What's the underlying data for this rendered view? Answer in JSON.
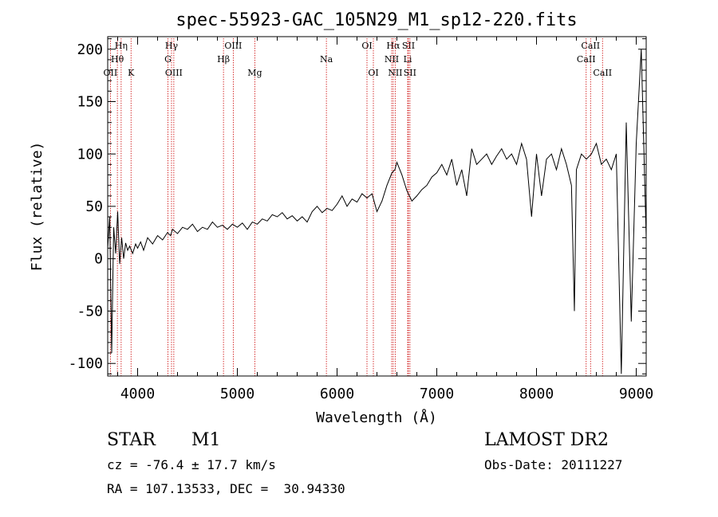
{
  "chart_data": {
    "type": "line",
    "title": "spec-55923-GAC_105N29_M1_sp12-220.fits",
    "xlabel": "Wavelength (Å)",
    "ylabel": "Flux (relative)",
    "xlim": [
      3700,
      9100
    ],
    "ylim": [
      -112,
      212
    ],
    "x_ticks": [
      4000,
      5000,
      6000,
      7000,
      8000,
      9000
    ],
    "y_ticks": [
      -100,
      -50,
      0,
      50,
      100,
      150,
      200
    ],
    "grid": false,
    "line_color": "#000000",
    "marker_color": "#cc0000",
    "series": [
      {
        "x": [
          3700,
          3720,
          3740,
          3760,
          3780,
          3800,
          3820,
          3840,
          3860,
          3880,
          3900,
          3920,
          3950,
          3980,
          4000,
          4030,
          4060,
          4100,
          4150,
          4200,
          4250,
          4300,
          4330,
          4350,
          4400,
          4450,
          4500,
          4550,
          4600,
          4650,
          4700,
          4750,
          4800,
          4850,
          4900,
          4950,
          5000,
          5050,
          5100,
          5150,
          5200,
          5250,
          5300,
          5350,
          5400,
          5450,
          5500,
          5550,
          5600,
          5650,
          5700,
          5750,
          5800,
          5850,
          5900,
          5950,
          6000,
          6050,
          6100,
          6150,
          6200,
          6250,
          6300,
          6350,
          6400,
          6450,
          6500,
          6550,
          6580,
          6600,
          6650,
          6700,
          6750,
          6800,
          6850,
          6900,
          6950,
          7000,
          7050,
          7100,
          7150,
          7200,
          7250,
          7300,
          7350,
          7400,
          7450,
          7500,
          7550,
          7600,
          7650,
          7700,
          7750,
          7800,
          7850,
          7900,
          7950,
          8000,
          8050,
          8100,
          8150,
          8200,
          8250,
          8300,
          8350,
          8380,
          8400,
          8450,
          8500,
          8550,
          8600,
          8650,
          8700,
          8750,
          8800,
          8850,
          8900,
          8950,
          9000,
          9050,
          9100
        ],
        "y": [
          10,
          40,
          -90,
          30,
          5,
          45,
          -5,
          20,
          0,
          15,
          8,
          12,
          5,
          14,
          10,
          16,
          8,
          20,
          14,
          22,
          18,
          25,
          22,
          28,
          24,
          30,
          28,
          33,
          26,
          30,
          28,
          35,
          30,
          32,
          28,
          33,
          30,
          34,
          28,
          35,
          33,
          38,
          36,
          42,
          40,
          44,
          38,
          41,
          36,
          40,
          35,
          45,
          50,
          44,
          48,
          46,
          52,
          60,
          50,
          57,
          54,
          62,
          58,
          62,
          45,
          55,
          70,
          82,
          85,
          92,
          80,
          65,
          55,
          60,
          66,
          70,
          78,
          82,
          90,
          80,
          95,
          70,
          85,
          60,
          105,
          90,
          95,
          100,
          90,
          98,
          105,
          95,
          100,
          90,
          110,
          95,
          40,
          100,
          60,
          95,
          100,
          85,
          105,
          90,
          70,
          -50,
          85,
          100,
          95,
          100,
          110,
          90,
          95,
          85,
          100,
          -110,
          130,
          -60,
          110,
          200,
          20
        ]
      }
    ],
    "line_markers": [
      {
        "label": "Hη",
        "x": 3835,
        "row": 1
      },
      {
        "label": "Hθ",
        "x": 3797,
        "row": 2
      },
      {
        "label": "OII",
        "x": 3727,
        "row": 3
      },
      {
        "label": "K",
        "x": 3934,
        "row": 3
      },
      {
        "label": "Hγ",
        "x": 4340,
        "row": 1
      },
      {
        "label": "G",
        "x": 4304,
        "row": 2
      },
      {
        "label": "OIII",
        "x": 4363,
        "row": 3
      },
      {
        "label": "OIII",
        "x": 4959,
        "row": 1
      },
      {
        "label": "Hβ",
        "x": 4861,
        "row": 2
      },
      {
        "label": "Mg",
        "x": 5175,
        "row": 3
      },
      {
        "label": "Na",
        "x": 5893,
        "row": 2
      },
      {
        "label": "OI",
        "x": 6300,
        "row": 1
      },
      {
        "label": "OI",
        "x": 6364,
        "row": 3
      },
      {
        "label": "Hα",
        "x": 6563,
        "row": 1
      },
      {
        "label": "NII",
        "x": 6548,
        "row": 2
      },
      {
        "label": "NII",
        "x": 6583,
        "row": 3
      },
      {
        "label": "SII",
        "x": 6716,
        "row": 1
      },
      {
        "label": "Li",
        "x": 6708,
        "row": 2
      },
      {
        "label": "SII",
        "x": 6731,
        "row": 3
      },
      {
        "label": "CaII",
        "x": 8542,
        "row": 1
      },
      {
        "label": "CaII",
        "x": 8498,
        "row": 2
      },
      {
        "label": "CaII",
        "x": 8662,
        "row": 3
      }
    ]
  },
  "info": {
    "object_class": "STAR",
    "subclass": "M1",
    "survey": "LAMOST DR2",
    "redshift": "cz = -76.4 ± 17.7 km/s",
    "obs_date": "Obs-Date: 20111227",
    "coords": "RA = 107.13533, DEC =  30.94330"
  }
}
